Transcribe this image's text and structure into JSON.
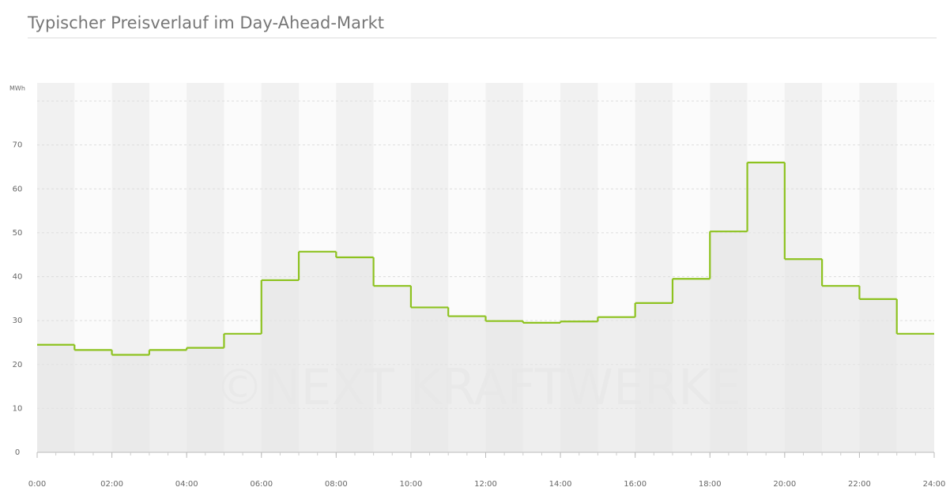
{
  "chart_data": {
    "type": "step",
    "title": "Typischer Preisverlauf im Day-Ahead-Markt",
    "y_label": "MWh",
    "watermark": "©NEXT KRAFTWERKE",
    "x": [
      0,
      1,
      2,
      3,
      4,
      5,
      6,
      7,
      8,
      9,
      10,
      11,
      12,
      13,
      14,
      15,
      16,
      17,
      18,
      19,
      20,
      21,
      22,
      23
    ],
    "values": [
      24.5,
      23.3,
      22.2,
      23.3,
      23.8,
      27,
      39.2,
      45.7,
      44.4,
      37.9,
      33,
      31,
      29.9,
      29.5,
      29.8,
      30.8,
      34,
      39.5,
      50.3,
      66,
      44,
      37.9,
      34.9,
      27
    ],
    "color": "#8dc21f",
    "xlim": [
      0,
      24
    ],
    "xticks": [
      {
        "value": 0,
        "label": "0:00"
      },
      {
        "value": 2,
        "label": "02:00"
      },
      {
        "value": 4,
        "label": "04:00"
      },
      {
        "value": 6,
        "label": "06:00"
      },
      {
        "value": 8,
        "label": "08:00"
      },
      {
        "value": 10,
        "label": "10:00"
      },
      {
        "value": 12,
        "label": "12:00"
      },
      {
        "value": 14,
        "label": "14:00"
      },
      {
        "value": 16,
        "label": "16:00"
      },
      {
        "value": 18,
        "label": "18:00"
      },
      {
        "value": 20,
        "label": "20:00"
      },
      {
        "value": 22,
        "label": "22:00"
      },
      {
        "value": 24,
        "label": "24:00"
      }
    ],
    "ylim": [
      0,
      80
    ],
    "yticks": [
      0,
      10,
      20,
      30,
      40,
      50,
      60,
      70
    ],
    "grid": true
  }
}
